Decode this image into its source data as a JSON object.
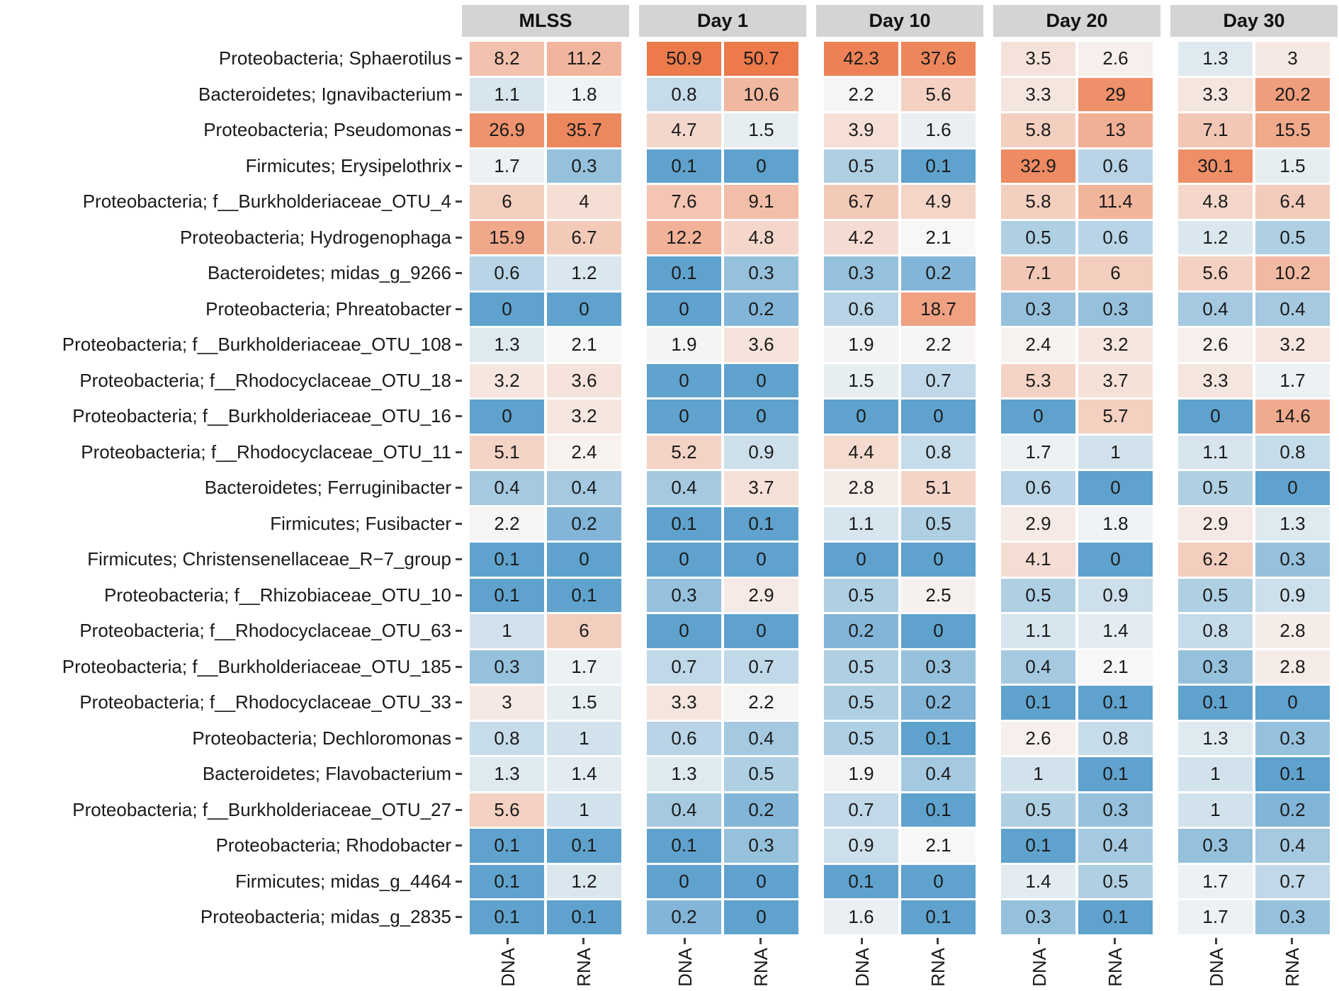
{
  "chart_data": {
    "type": "heatmap",
    "title": "",
    "facets": [
      "MLSS",
      "Day 1",
      "Day 10",
      "Day 20",
      "Day 30"
    ],
    "x_labels": [
      "DNA",
      "RNA"
    ],
    "legend": "none",
    "facet_header_bg": "#d4d4d4",
    "text_color": "#1a1a1a",
    "color_scale": {
      "low": "#5fa2cd",
      "mid": "#f7f7f7",
      "high": "#ec7a4b",
      "domain_min": 0.1,
      "domain_mid": 2.1,
      "domain_max": 51,
      "transform": "log10"
    },
    "rows": [
      {
        "taxon": "Proteobacteria; Sphaerotilus",
        "values": [
          [
            8.2,
            11.2
          ],
          [
            50.9,
            50.7
          ],
          [
            42.3,
            37.6
          ],
          [
            3.5,
            2.6
          ],
          [
            1.3,
            3
          ]
        ]
      },
      {
        "taxon": "Bacteroidetes; Ignavibacterium",
        "values": [
          [
            1.1,
            1.8
          ],
          [
            0.8,
            10.6
          ],
          [
            2.2,
            5.6
          ],
          [
            3.3,
            29
          ],
          [
            3.3,
            20.2
          ]
        ]
      },
      {
        "taxon": "Proteobacteria; Pseudomonas",
        "values": [
          [
            26.9,
            35.7
          ],
          [
            4.7,
            1.5
          ],
          [
            3.9,
            1.6
          ],
          [
            5.8,
            13
          ],
          [
            7.1,
            15.5
          ]
        ]
      },
      {
        "taxon": "Firmicutes; Erysipelothrix",
        "values": [
          [
            1.7,
            0.3
          ],
          [
            0.1,
            0
          ],
          [
            0.5,
            0.1
          ],
          [
            32.9,
            0.6
          ],
          [
            30.1,
            1.5
          ]
        ]
      },
      {
        "taxon": "Proteobacteria; f__Burkholderiaceae_OTU_4",
        "values": [
          [
            6,
            4
          ],
          [
            7.6,
            9.1
          ],
          [
            6.7,
            4.9
          ],
          [
            5.8,
            11.4
          ],
          [
            4.8,
            6.4
          ]
        ]
      },
      {
        "taxon": "Proteobacteria; Hydrogenophaga",
        "values": [
          [
            15.9,
            6.7
          ],
          [
            12.2,
            4.8
          ],
          [
            4.2,
            2.1
          ],
          [
            0.5,
            0.6
          ],
          [
            1.2,
            0.5
          ]
        ]
      },
      {
        "taxon": "Bacteroidetes; midas_g_9266",
        "values": [
          [
            0.6,
            1.2
          ],
          [
            0.1,
            0.3
          ],
          [
            0.3,
            0.2
          ],
          [
            7.1,
            6
          ],
          [
            5.6,
            10.2
          ]
        ]
      },
      {
        "taxon": "Proteobacteria; Phreatobacter",
        "values": [
          [
            0,
            0
          ],
          [
            0,
            0.2
          ],
          [
            0.6,
            18.7
          ],
          [
            0.3,
            0.3
          ],
          [
            0.4,
            0.4
          ]
        ]
      },
      {
        "taxon": "Proteobacteria; f__Burkholderiaceae_OTU_108",
        "values": [
          [
            1.3,
            2.1
          ],
          [
            1.9,
            3.6
          ],
          [
            1.9,
            2.2
          ],
          [
            2.4,
            3.2
          ],
          [
            2.6,
            3.2
          ]
        ]
      },
      {
        "taxon": "Proteobacteria; f__Rhodocyclaceae_OTU_18",
        "values": [
          [
            3.2,
            3.6
          ],
          [
            0,
            0
          ],
          [
            1.5,
            0.7
          ],
          [
            5.3,
            3.7
          ],
          [
            3.3,
            1.7
          ]
        ]
      },
      {
        "taxon": "Proteobacteria; f__Burkholderiaceae_OTU_16",
        "values": [
          [
            0,
            3.2
          ],
          [
            0,
            0
          ],
          [
            0,
            0
          ],
          [
            0,
            5.7
          ],
          [
            0,
            14.6
          ]
        ]
      },
      {
        "taxon": "Proteobacteria; f__Rhodocyclaceae_OTU_11",
        "values": [
          [
            5.1,
            2.4
          ],
          [
            5.2,
            0.9
          ],
          [
            4.4,
            0.8
          ],
          [
            1.7,
            1
          ],
          [
            1.1,
            0.8
          ]
        ]
      },
      {
        "taxon": "Bacteroidetes; Ferruginibacter",
        "values": [
          [
            0.4,
            0.4
          ],
          [
            0.4,
            3.7
          ],
          [
            2.8,
            5.1
          ],
          [
            0.6,
            0
          ],
          [
            0.5,
            0
          ]
        ]
      },
      {
        "taxon": "Firmicutes; Fusibacter",
        "values": [
          [
            2.2,
            0.2
          ],
          [
            0.1,
            0.1
          ],
          [
            1.1,
            0.5
          ],
          [
            2.9,
            1.8
          ],
          [
            2.9,
            1.3
          ]
        ]
      },
      {
        "taxon": "Firmicutes; Christensenellaceae_R−7_group",
        "values": [
          [
            0.1,
            0
          ],
          [
            0,
            0
          ],
          [
            0,
            0
          ],
          [
            4.1,
            0
          ],
          [
            6.2,
            0.3
          ]
        ]
      },
      {
        "taxon": "Proteobacteria; f__Rhizobiaceae_OTU_10",
        "values": [
          [
            0.1,
            0.1
          ],
          [
            0.3,
            2.9
          ],
          [
            0.5,
            2.5
          ],
          [
            0.5,
            0.9
          ],
          [
            0.5,
            0.9
          ]
        ]
      },
      {
        "taxon": "Proteobacteria; f__Rhodocyclaceae_OTU_63",
        "values": [
          [
            1,
            6
          ],
          [
            0,
            0
          ],
          [
            0.2,
            0
          ],
          [
            1.1,
            1.4
          ],
          [
            0.8,
            2.8
          ]
        ]
      },
      {
        "taxon": "Proteobacteria; f__Burkholderiaceae_OTU_185",
        "values": [
          [
            0.3,
            1.7
          ],
          [
            0.7,
            0.7
          ],
          [
            0.5,
            0.3
          ],
          [
            0.4,
            2.1
          ],
          [
            0.3,
            2.8
          ]
        ]
      },
      {
        "taxon": "Proteobacteria; f__Rhodocyclaceae_OTU_33",
        "values": [
          [
            3,
            1.5
          ],
          [
            3.3,
            2.2
          ],
          [
            0.5,
            0.2
          ],
          [
            0.1,
            0.1
          ],
          [
            0.1,
            0
          ]
        ]
      },
      {
        "taxon": "Proteobacteria; Dechloromonas",
        "values": [
          [
            0.8,
            1
          ],
          [
            0.6,
            0.4
          ],
          [
            0.5,
            0.1
          ],
          [
            2.6,
            0.8
          ],
          [
            1.3,
            0.3
          ]
        ]
      },
      {
        "taxon": "Bacteroidetes; Flavobacterium",
        "values": [
          [
            1.3,
            1.4
          ],
          [
            1.3,
            0.5
          ],
          [
            1.9,
            0.4
          ],
          [
            1,
            0.1
          ],
          [
            1,
            0.1
          ]
        ]
      },
      {
        "taxon": "Proteobacteria; f__Burkholderiaceae_OTU_27",
        "values": [
          [
            5.6,
            1
          ],
          [
            0.4,
            0.2
          ],
          [
            0.7,
            0.1
          ],
          [
            0.5,
            0.3
          ],
          [
            1,
            0.2
          ]
        ]
      },
      {
        "taxon": "Proteobacteria; Rhodobacter",
        "values": [
          [
            0.1,
            0.1
          ],
          [
            0.1,
            0.3
          ],
          [
            0.9,
            2.1
          ],
          [
            0.1,
            0.4
          ],
          [
            0.3,
            0.4
          ]
        ]
      },
      {
        "taxon": "Firmicutes; midas_g_4464",
        "values": [
          [
            0.1,
            1.2
          ],
          [
            0,
            0
          ],
          [
            0.1,
            0
          ],
          [
            1.4,
            0.5
          ],
          [
            1.7,
            0.7
          ]
        ]
      },
      {
        "taxon": "Proteobacteria; midas_g_2835",
        "values": [
          [
            0.1,
            0.1
          ],
          [
            0.2,
            0
          ],
          [
            1.6,
            0.1
          ],
          [
            0.3,
            0.1
          ],
          [
            1.7,
            0.3
          ]
        ]
      }
    ]
  }
}
